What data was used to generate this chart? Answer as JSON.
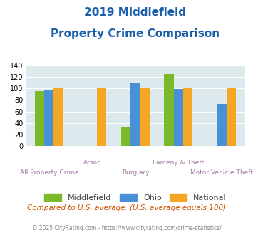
{
  "title_line1": "2019 Middlefield",
  "title_line2": "Property Crime Comparison",
  "categories": [
    "All Property Crime",
    "Arson",
    "Burglary",
    "Larceny & Theft",
    "Motor Vehicle Theft"
  ],
  "top_labels": [
    "",
    "Arson",
    "",
    "Larceny & Theft",
    ""
  ],
  "bot_labels": [
    "All Property Crime",
    "",
    "Burglary",
    "",
    "Motor Vehicle Theft"
  ],
  "middlefield": [
    96,
    0,
    33,
    125,
    0
  ],
  "ohio": [
    98,
    0,
    111,
    99,
    73
  ],
  "national": [
    100,
    100,
    100,
    100,
    100
  ],
  "middlefield_color": "#7aba2a",
  "ohio_color": "#4a90d9",
  "national_color": "#f5a623",
  "ylim": [
    0,
    140
  ],
  "yticks": [
    0,
    20,
    40,
    60,
    80,
    100,
    120,
    140
  ],
  "background_color": "#dce9ed",
  "title_color": "#1a5faa",
  "label_color": "#9e7ca0",
  "footer_text": "Compared to U.S. average. (U.S. average equals 100)",
  "footer_color": "#cc5500",
  "copyright_text": "© 2025 CityRating.com - https://www.cityrating.com/crime-statistics/",
  "copyright_color": "#888888",
  "legend_labels": [
    "Middlefield",
    "Ohio",
    "National"
  ],
  "bar_width": 0.22
}
